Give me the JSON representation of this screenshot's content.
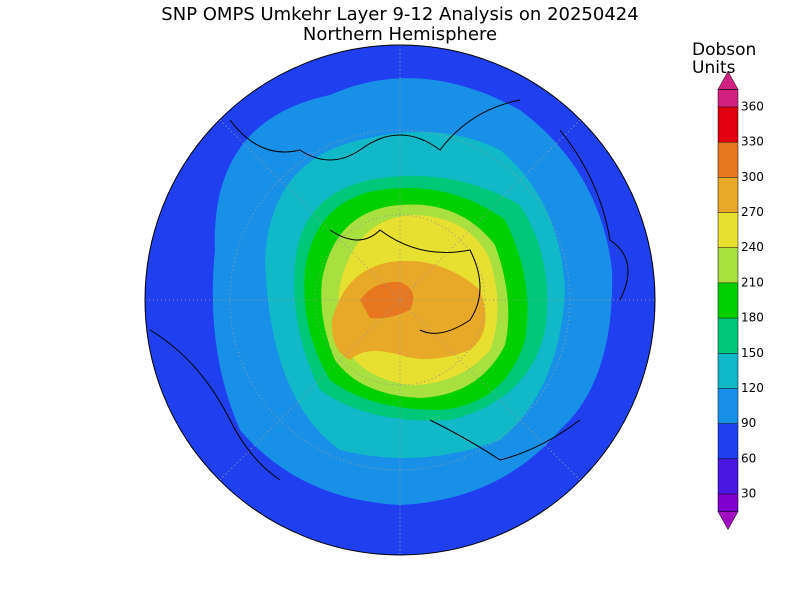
{
  "header": {
    "title": "SNP OMPS Umkehr Layer 9-12 Analysis on 20250424",
    "subtitle": "Northern Hemisphere"
  },
  "colorbar": {
    "label_lines": [
      "Dobson",
      "Units"
    ],
    "ticks": [
      30,
      60,
      90,
      120,
      150,
      180,
      210,
      240,
      270,
      300,
      330,
      360
    ],
    "colors": [
      "#a010c0",
      "#8000d0",
      "#4a18e0",
      "#2040f0",
      "#1890e8",
      "#10b8c8",
      "#00c878",
      "#00d000",
      "#a8e040",
      "#e8e030",
      "#e8a828",
      "#e87820",
      "#e00010",
      "#d02080"
    ]
  }
}
